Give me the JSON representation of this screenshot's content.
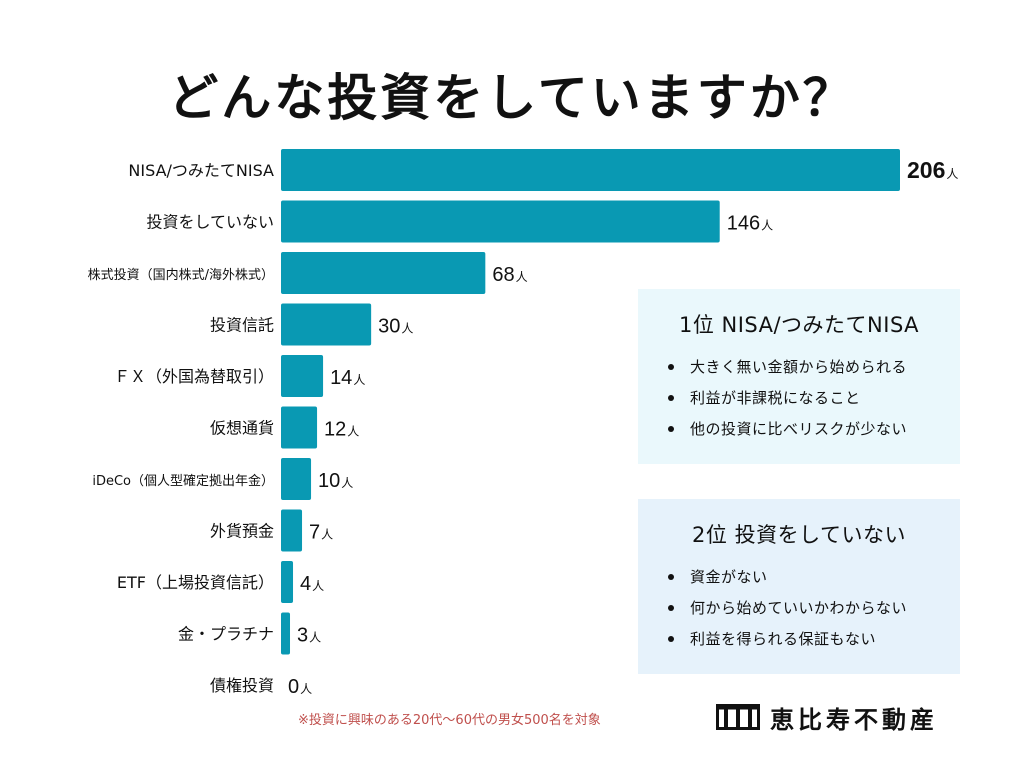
{
  "title": "どんな投資をしていますか？",
  "chart_data": {
    "type": "bar",
    "orientation": "horizontal",
    "title": "どんな投資をしていますか？",
    "unit": "人",
    "categories": [
      "NISA/つみたてNISA",
      "投資をしていない",
      "株式投資（国内株式/海外株式）",
      "投資信託",
      "ＦＸ（外国為替取引）",
      "仮想通貨",
      "iDeCo（個人型確定拠出年金）",
      "外貨預金",
      "ETF（上場投資信託）",
      "金・プラチナ",
      "債権投資"
    ],
    "values": [
      206,
      146,
      68,
      30,
      14,
      12,
      10,
      7,
      4,
      3,
      0
    ],
    "xlim": [
      0,
      206
    ],
    "bar_color": "#0999b3"
  },
  "panels": [
    {
      "title": "1位 NISA/つみたてNISA",
      "items": [
        "大きく無い金額から始められる",
        "利益が非課税になること",
        "他の投資に比べリスクが少ない"
      ]
    },
    {
      "title": "2位 投資をしていない",
      "items": [
        "資金がない",
        "何から始めていいかわからない",
        "利益を得られる保証もない"
      ]
    }
  ],
  "note": "※投資に興味のある20代〜60代の男女500名を対象",
  "brand": {
    "name": "恵比寿不動産",
    "icon": "building-logo-icon"
  },
  "colors": {
    "bar": "#0999b3",
    "note": "#c0504d",
    "panel1": "#eaf8fc",
    "panel2": "#e6f2fb"
  }
}
